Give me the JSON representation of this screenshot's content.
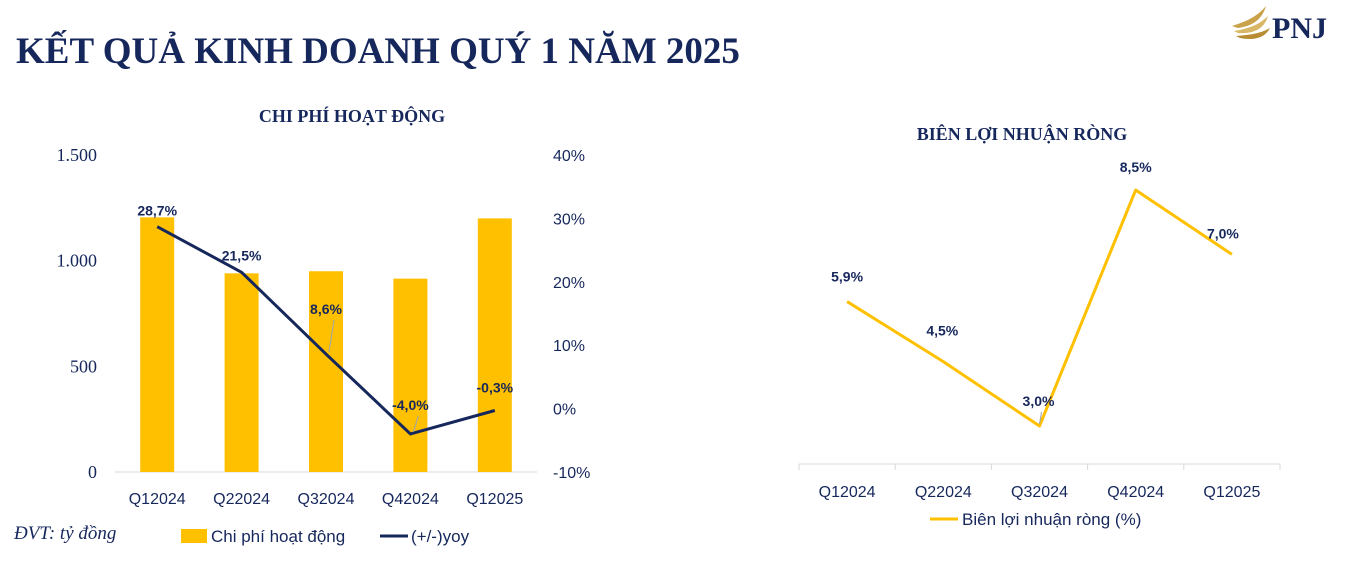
{
  "page": {
    "title": "KẾT QUẢ KINH DOANH QUÝ 1 NĂM 2025",
    "logo_text": "PNJ",
    "unit_note": "ĐVT: tỷ đồng"
  },
  "colors": {
    "navy": "#16275c",
    "gold": "#ffc000",
    "axis": "#d9d9d9"
  },
  "chart_data": [
    {
      "type": "bar",
      "title": "CHI PHÍ HOẠT ĐỘNG",
      "categories": [
        "Q12024",
        "Q22024",
        "Q32024",
        "Q42024",
        "Q12025"
      ],
      "series": [
        {
          "name": "Chi phí hoạt động",
          "type": "bar",
          "axis": "left",
          "color": "#ffc000",
          "values": [
            1205,
            940,
            950,
            915,
            1200
          ]
        },
        {
          "name": "(+/-)yoy",
          "type": "line",
          "axis": "right",
          "color": "#16275c",
          "values": [
            28.7,
            21.5,
            8.6,
            -4.0,
            -0.3
          ],
          "labels": [
            "28,7%",
            "21,5%",
            "8,6%",
            "-4,0%",
            "-0,3%"
          ]
        }
      ],
      "y_left": {
        "range": [
          0,
          1500
        ],
        "ticks": [
          0,
          500,
          1000,
          1500
        ],
        "tick_labels": [
          "0",
          "500",
          "1.000",
          "1.500"
        ]
      },
      "y_right": {
        "range": [
          -10,
          40
        ],
        "ticks": [
          -10,
          0,
          10,
          20,
          30,
          40
        ],
        "tick_labels": [
          "-10%",
          "0%",
          "10%",
          "20%",
          "30%",
          "40%"
        ]
      },
      "legend": {
        "position": "bottom"
      },
      "grid": false
    },
    {
      "type": "line",
      "title": "BIÊN LỢI NHUẬN RÒNG",
      "categories": [
        "Q12024",
        "Q22024",
        "Q32024",
        "Q42024",
        "Q12025"
      ],
      "series": [
        {
          "name": "Biên lợi nhuận ròng (%)",
          "color": "#ffc000",
          "values": [
            5.9,
            4.5,
            3.0,
            8.5,
            7.0
          ],
          "labels": [
            "5,9%",
            "4,5%",
            "3,0%",
            "8,5%",
            "7,0%"
          ]
        }
      ],
      "y_range": [
        2.5,
        9.0
      ],
      "legend": {
        "position": "bottom"
      },
      "grid": false
    }
  ]
}
